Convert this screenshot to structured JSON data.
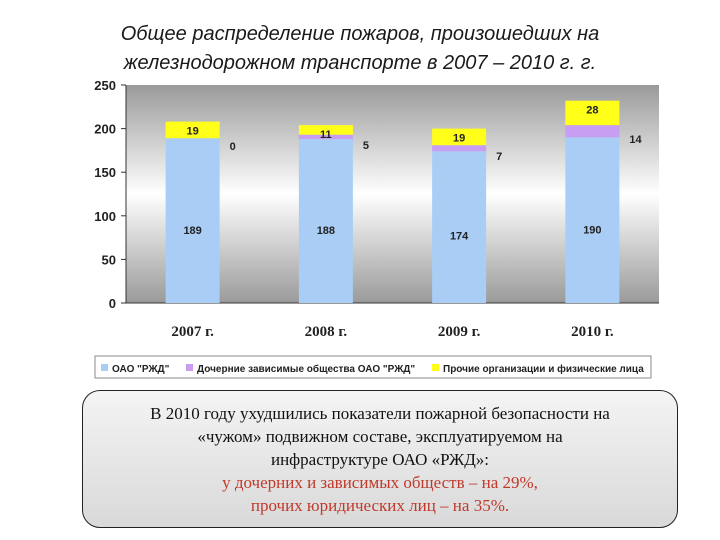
{
  "title": {
    "line1": "Общее распределение пожаров, произошедших на",
    "line2": "железнодорожном транспорте в 2007 – 2010 г. г."
  },
  "chart_data": {
    "type": "bar",
    "stacked": true,
    "categories": [
      "2007 г.",
      "2008 г.",
      "2009 г.",
      "2010 г."
    ],
    "series": [
      {
        "name": "ОАО \"РЖД\"",
        "color": "#a9cdf5",
        "values": [
          189,
          188,
          174,
          190
        ]
      },
      {
        "name": "Дочерние зависимые общества ОАО \"РЖД\"",
        "color": "#c79ef2",
        "values": [
          0,
          5,
          7,
          14
        ]
      },
      {
        "name": "Прочие организации и физические лица",
        "color": "#ffff1a",
        "values": [
          19,
          11,
          19,
          28
        ]
      }
    ],
    "yticks": [
      "0",
      "50",
      "100",
      "150",
      "200",
      "250"
    ],
    "ylim": [
      0,
      250
    ],
    "grid": false,
    "legend_position": "bottom"
  },
  "callout": {
    "line1": "В 2010 году ухудшились показатели пожарной безопасности на",
    "line2": "«чужом» подвижном составе, эксплуатируемом на",
    "line3": "инфраструктуре ОАО «РЖД»:",
    "line4": "у дочерних и зависимых обществ – на 29%,",
    "line5": "прочих юридических лиц – на 35%."
  }
}
